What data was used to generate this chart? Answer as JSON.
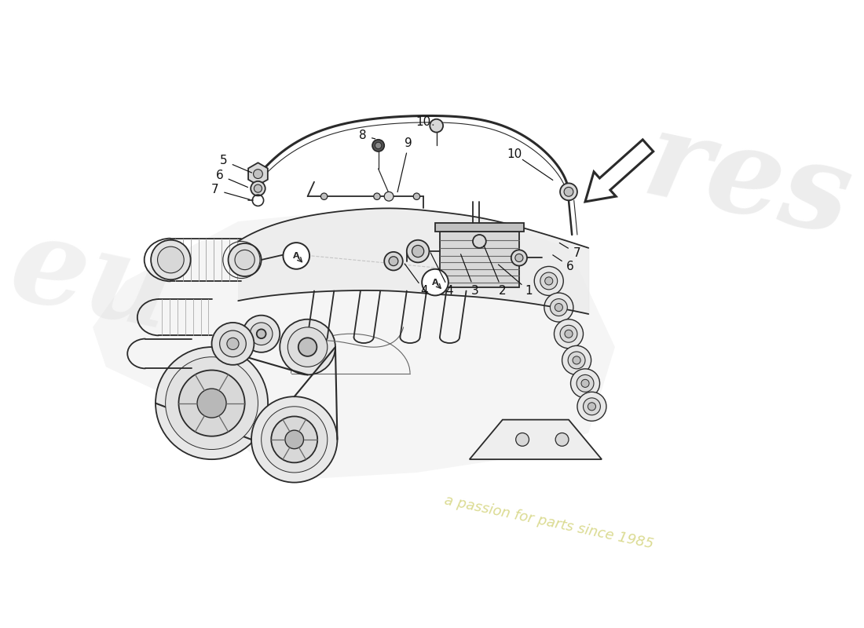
{
  "bg_color": "#ffffff",
  "line_color": "#2a2a2a",
  "light_line_color": "#aaaaaa",
  "medium_line_color": "#666666",
  "fill_light": "#ececec",
  "fill_medium": "#d8d8d8",
  "fill_dark": "#c0c0c0",
  "watermark_res_color": "#d0d0d0",
  "watermark_eu_color": "#d0d0d0",
  "watermark_text_color": "#c8c870",
  "watermark_res": "res",
  "watermark_eu": "eu",
  "watermark_tagline": "a passion for parts since 1985",
  "part_labels": [
    "1",
    "2",
    "3",
    "4",
    "4",
    "5",
    "6",
    "6",
    "7",
    "7",
    "8",
    "9",
    "10",
    "10"
  ],
  "section_label": "A",
  "arrow_direction": "lower-left",
  "font_size": 11
}
